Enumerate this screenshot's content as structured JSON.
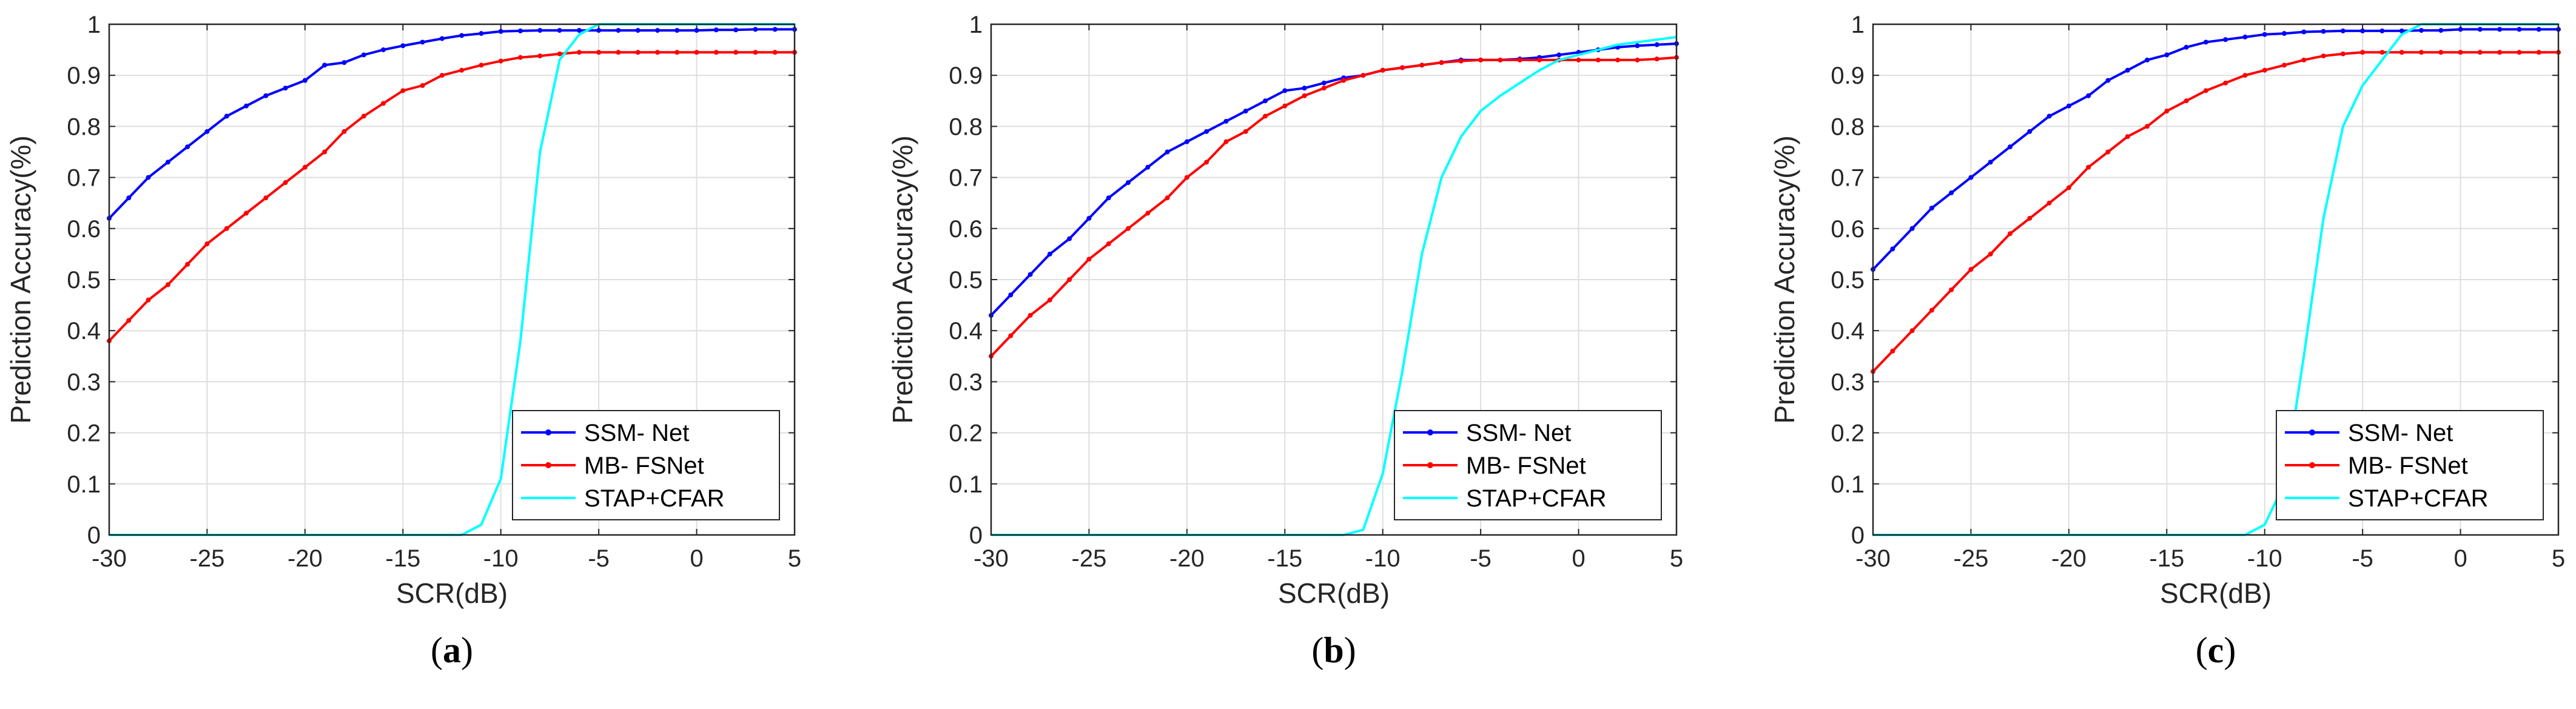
{
  "chart_data": [
    {
      "type": "line",
      "caption": "a",
      "xlabel": "SCR(dB)",
      "ylabel": "Prediction Accuracy(%)",
      "xlim": [
        -30,
        5
      ],
      "ylim": [
        0,
        1
      ],
      "grid": true,
      "legend_position": "bottom-right",
      "xticks": [
        "-30",
        "-25",
        "-20",
        "-15",
        "-10",
        "-5",
        "0",
        "5"
      ],
      "yticks": [
        "0",
        "0.1",
        "0.2",
        "0.3",
        "0.4",
        "0.5",
        "0.6",
        "0.7",
        "0.8",
        "0.9",
        "1"
      ],
      "x": [
        -30,
        -29,
        -28,
        -27,
        -26,
        -25,
        -24,
        -23,
        -22,
        -21,
        -20,
        -19,
        -18,
        -17,
        -16,
        -15,
        -14,
        -13,
        -12,
        -11,
        -10,
        -9,
        -8,
        -7,
        -6,
        -5,
        -4,
        -3,
        -2,
        -1,
        0,
        1,
        2,
        3,
        4,
        5
      ],
      "series": [
        {
          "name": "SSM- Net",
          "color": "#0000ff",
          "values": [
            0.62,
            0.66,
            0.7,
            0.73,
            0.76,
            0.79,
            0.82,
            0.84,
            0.86,
            0.875,
            0.89,
            0.92,
            0.925,
            0.94,
            0.95,
            0.958,
            0.965,
            0.972,
            0.978,
            0.982,
            0.986,
            0.987,
            0.988,
            0.988,
            0.988,
            0.988,
            0.988,
            0.988,
            0.988,
            0.988,
            0.988,
            0.989,
            0.989,
            0.99,
            0.99,
            0.99
          ]
        },
        {
          "name": "MB- FSNet",
          "color": "#ff0000",
          "values": [
            0.38,
            0.42,
            0.46,
            0.49,
            0.53,
            0.57,
            0.6,
            0.63,
            0.66,
            0.69,
            0.72,
            0.75,
            0.79,
            0.82,
            0.845,
            0.87,
            0.88,
            0.9,
            0.91,
            0.92,
            0.928,
            0.935,
            0.938,
            0.942,
            0.945,
            0.945,
            0.945,
            0.945,
            0.945,
            0.945,
            0.945,
            0.945,
            0.945,
            0.945,
            0.945,
            0.945
          ]
        },
        {
          "name": "STAP+CFAR",
          "color": "#00ffff",
          "values": [
            0,
            0,
            0,
            0,
            0,
            0,
            0,
            0,
            0,
            0,
            0,
            0,
            0,
            0,
            0,
            0,
            0,
            0,
            0,
            0.02,
            0.11,
            0.38,
            0.75,
            0.93,
            0.98,
            1,
            1,
            1,
            1,
            1,
            1,
            1,
            1,
            1,
            1,
            1
          ]
        }
      ]
    },
    {
      "type": "line",
      "caption": "b",
      "xlabel": "SCR(dB)",
      "ylabel": "Prediction Accuracy(%)",
      "xlim": [
        -30,
        5
      ],
      "ylim": [
        0,
        1
      ],
      "grid": true,
      "legend_position": "bottom-right",
      "xticks": [
        "-30",
        "-25",
        "-20",
        "-15",
        "-10",
        "-5",
        "0",
        "5"
      ],
      "yticks": [
        "0",
        "0.1",
        "0.2",
        "0.3",
        "0.4",
        "0.5",
        "0.6",
        "0.7",
        "0.8",
        "0.9",
        "1"
      ],
      "x": [
        -30,
        -29,
        -28,
        -27,
        -26,
        -25,
        -24,
        -23,
        -22,
        -21,
        -20,
        -19,
        -18,
        -17,
        -16,
        -15,
        -14,
        -13,
        -12,
        -11,
        -10,
        -9,
        -8,
        -7,
        -6,
        -5,
        -4,
        -3,
        -2,
        -1,
        0,
        1,
        2,
        3,
        4,
        5
      ],
      "series": [
        {
          "name": "SSM- Net",
          "color": "#0000ff",
          "values": [
            0.43,
            0.47,
            0.51,
            0.55,
            0.58,
            0.62,
            0.66,
            0.69,
            0.72,
            0.75,
            0.77,
            0.79,
            0.81,
            0.83,
            0.85,
            0.87,
            0.875,
            0.885,
            0.895,
            0.9,
            0.91,
            0.915,
            0.92,
            0.925,
            0.93,
            0.93,
            0.93,
            0.932,
            0.935,
            0.94,
            0.945,
            0.95,
            0.955,
            0.958,
            0.96,
            0.962
          ]
        },
        {
          "name": "MB- FSNet",
          "color": "#ff0000",
          "values": [
            0.35,
            0.39,
            0.43,
            0.46,
            0.5,
            0.54,
            0.57,
            0.6,
            0.63,
            0.66,
            0.7,
            0.73,
            0.77,
            0.79,
            0.82,
            0.84,
            0.86,
            0.875,
            0.89,
            0.9,
            0.91,
            0.915,
            0.92,
            0.925,
            0.928,
            0.93,
            0.93,
            0.93,
            0.93,
            0.93,
            0.93,
            0.93,
            0.93,
            0.93,
            0.932,
            0.935
          ]
        },
        {
          "name": "STAP+CFAR",
          "color": "#00ffff",
          "values": [
            0,
            0,
            0,
            0,
            0,
            0,
            0,
            0,
            0,
            0,
            0,
            0,
            0,
            0,
            0,
            0,
            0,
            0,
            0,
            0.01,
            0.12,
            0.32,
            0.55,
            0.7,
            0.78,
            0.83,
            0.86,
            0.885,
            0.91,
            0.93,
            0.94,
            0.95,
            0.96,
            0.965,
            0.97,
            0.975
          ]
        }
      ]
    },
    {
      "type": "line",
      "caption": "c",
      "xlabel": "SCR(dB)",
      "ylabel": "Prediction Accuracy(%)",
      "xlim": [
        -30,
        5
      ],
      "ylim": [
        0,
        1
      ],
      "grid": true,
      "legend_position": "bottom-right",
      "xticks": [
        "-30",
        "-25",
        "-20",
        "-15",
        "-10",
        "-5",
        "0",
        "5"
      ],
      "yticks": [
        "0",
        "0.1",
        "0.2",
        "0.3",
        "0.4",
        "0.5",
        "0.6",
        "0.7",
        "0.8",
        "0.9",
        "1"
      ],
      "x": [
        -30,
        -29,
        -28,
        -27,
        -26,
        -25,
        -24,
        -23,
        -22,
        -21,
        -20,
        -19,
        -18,
        -17,
        -16,
        -15,
        -14,
        -13,
        -12,
        -11,
        -10,
        -9,
        -8,
        -7,
        -6,
        -5,
        -4,
        -3,
        -2,
        -1,
        0,
        1,
        2,
        3,
        4,
        5
      ],
      "series": [
        {
          "name": "SSM- Net",
          "color": "#0000ff",
          "values": [
            0.52,
            0.56,
            0.6,
            0.64,
            0.67,
            0.7,
            0.73,
            0.76,
            0.79,
            0.82,
            0.84,
            0.86,
            0.89,
            0.91,
            0.93,
            0.94,
            0.955,
            0.965,
            0.97,
            0.975,
            0.98,
            0.982,
            0.985,
            0.986,
            0.987,
            0.987,
            0.987,
            0.987,
            0.988,
            0.988,
            0.99,
            0.99,
            0.99,
            0.99,
            0.99,
            0.99
          ]
        },
        {
          "name": "MB- FSNet",
          "color": "#ff0000",
          "values": [
            0.32,
            0.36,
            0.4,
            0.44,
            0.48,
            0.52,
            0.55,
            0.59,
            0.62,
            0.65,
            0.68,
            0.72,
            0.75,
            0.78,
            0.8,
            0.83,
            0.85,
            0.87,
            0.885,
            0.9,
            0.91,
            0.92,
            0.93,
            0.938,
            0.942,
            0.945,
            0.945,
            0.945,
            0.945,
            0.945,
            0.945,
            0.945,
            0.945,
            0.945,
            0.945,
            0.945
          ]
        },
        {
          "name": "STAP+CFAR",
          "color": "#00ffff",
          "values": [
            0,
            0,
            0,
            0,
            0,
            0,
            0,
            0,
            0,
            0,
            0,
            0,
            0,
            0,
            0,
            0,
            0,
            0,
            0,
            0,
            0.02,
            0.1,
            0.35,
            0.62,
            0.8,
            0.88,
            0.93,
            0.98,
            1,
            1,
            1,
            1,
            1,
            1,
            1,
            1
          ]
        }
      ]
    }
  ]
}
